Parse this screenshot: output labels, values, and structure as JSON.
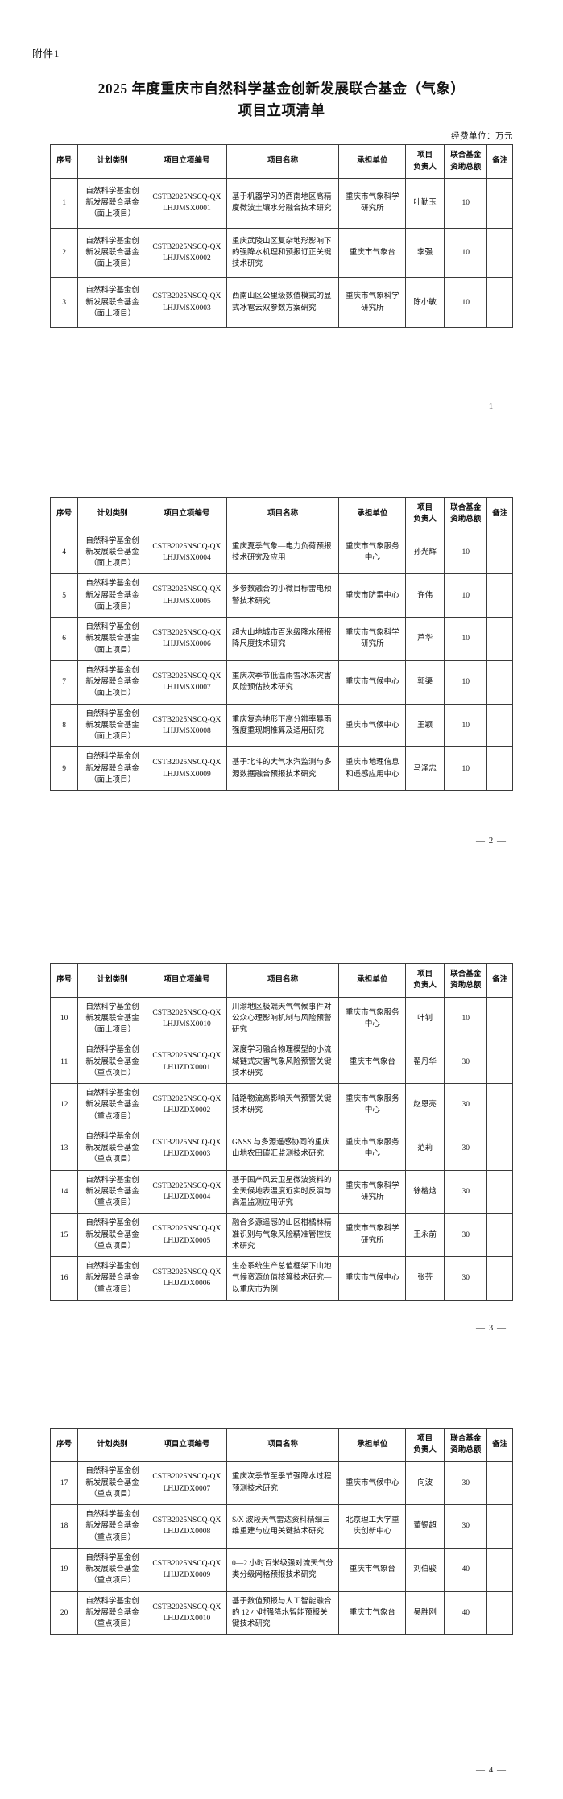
{
  "document": {
    "attachment_label": "附件1",
    "title_line1": "2025 年度重庆市自然科学基金创新发展联合基金（气象）",
    "title_line2": "项目立项清单",
    "unit_note": "经费单位：万元"
  },
  "table": {
    "headers": {
      "index": "序号",
      "category": "计划类别",
      "code": "项目立项编号",
      "name": "项目名称",
      "unit": "承担单位",
      "leader": "项目\n负责人",
      "amount": "联合基金\n资助总额",
      "remark": "备注"
    }
  },
  "pages": [
    {
      "page_label": "— 1 —",
      "rows": [
        {
          "index": "1",
          "category": "自然科学基金创\n新发展联合基金\n（面上项目）",
          "code": "CSTB2025NSCQ-QX\nLHJJMSX0001",
          "name": "基于机器学习的西南地区高精度微波土壤水分融合技术研究",
          "unit": "重庆市气象科学研究所",
          "leader": "叶勤玉",
          "amount": "10",
          "remark": ""
        },
        {
          "index": "2",
          "category": "自然科学基金创\n新发展联合基金\n（面上项目）",
          "code": "CSTB2025NSCQ-QX\nLHJJMSX0002",
          "name": "重庆武陵山区复杂地形影响下的强降水机理和预报订正关键技术研究",
          "unit": "重庆市气象台",
          "leader": "李强",
          "amount": "10",
          "remark": ""
        },
        {
          "index": "3",
          "category": "自然科学基金创\n新发展联合基金\n（面上项目）",
          "code": "CSTB2025NSCQ-QX\nLHJJMSX0003",
          "name": "西南山区公里级数值模式的显式冰雹云双参数方案研究",
          "unit": "重庆市气象科学研究所",
          "leader": "陈小敏",
          "amount": "10",
          "remark": ""
        }
      ]
    },
    {
      "page_label": "— 2 —",
      "rows": [
        {
          "index": "4",
          "category": "自然科学基金创\n新发展联合基金\n（面上项目）",
          "code": "CSTB2025NSCQ-QX\nLHJJMSX0004",
          "name": "重庆夏季气象—电力负荷预报技术研究及应用",
          "unit": "重庆市气象服务中心",
          "leader": "孙光辉",
          "amount": "10",
          "remark": ""
        },
        {
          "index": "5",
          "category": "自然科学基金创\n新发展联合基金\n（面上项目）",
          "code": "CSTB2025NSCQ-QX\nLHJJMSX0005",
          "name": "多参数融合的小微目标雷电预警技术研究",
          "unit": "重庆市防雷中心",
          "leader": "许伟",
          "amount": "10",
          "remark": ""
        },
        {
          "index": "6",
          "category": "自然科学基金创\n新发展联合基金\n（面上项目）",
          "code": "CSTB2025NSCQ-QX\nLHJJMSX0006",
          "name": "超大山地城市百米级降水预报降尺度技术研究",
          "unit": "重庆市气象科学研究所",
          "leader": "芦华",
          "amount": "10",
          "remark": ""
        },
        {
          "index": "7",
          "category": "自然科学基金创\n新发展联合基金\n（面上项目）",
          "code": "CSTB2025NSCQ-QX\nLHJJMSX0007",
          "name": "重庆次季节低温雨雪冰冻灾害风险预估技术研究",
          "unit": "重庆市气候中心",
          "leader": "郭渠",
          "amount": "10",
          "remark": ""
        },
        {
          "index": "8",
          "category": "自然科学基金创\n新发展联合基金\n（面上项目）",
          "code": "CSTB2025NSCQ-QX\nLHJJMSX0008",
          "name": "重庆复杂地形下高分辨率暴雨强度重现期推算及适用研究",
          "unit": "重庆市气候中心",
          "leader": "王颖",
          "amount": "10",
          "remark": ""
        },
        {
          "index": "9",
          "category": "自然科学基金创\n新发展联合基金\n（面上项目）",
          "code": "CSTB2025NSCQ-QX\nLHJJMSX0009",
          "name": "基于北斗的大气水汽监测与多源数据融合预报技术研究",
          "unit": "重庆市地理信息和遥感应用中心",
          "leader": "马泽忠",
          "amount": "10",
          "remark": ""
        }
      ]
    },
    {
      "page_label": "— 3 —",
      "rows": [
        {
          "index": "10",
          "category": "自然科学基金创\n新发展联合基金\n（面上项目）",
          "code": "CSTB2025NSCQ-QX\nLHJJMSX0010",
          "name": "川渝地区极端天气气候事件对公众心理影响机制与风险预警研究",
          "unit": "重庆市气象服务中心",
          "leader": "叶钊",
          "amount": "10",
          "remark": ""
        },
        {
          "index": "11",
          "category": "自然科学基金创\n新发展联合基金\n（重点项目）",
          "code": "CSTB2025NSCQ-QX\nLHJJZDX0001",
          "name": "深度学习融合物理模型的小流域链式灾害气象风险预警关键技术研究",
          "unit": "重庆市气象台",
          "leader": "翟丹华",
          "amount": "30",
          "remark": ""
        },
        {
          "index": "12",
          "category": "自然科学基金创\n新发展联合基金\n（重点项目）",
          "code": "CSTB2025NSCQ-QX\nLHJJZDX0002",
          "name": "陆路物流高影响天气预警关键技术研究",
          "unit": "重庆市气象服务中心",
          "leader": "赵恩亮",
          "amount": "30",
          "remark": ""
        },
        {
          "index": "13",
          "category": "自然科学基金创\n新发展联合基金\n（重点项目）",
          "code": "CSTB2025NSCQ-QX\nLHJJZDX0003",
          "name": "GNSS 与多源遥感协同的重庆山地农田碳汇监测技术研究",
          "unit": "重庆市气象服务中心",
          "leader": "范莉",
          "amount": "30",
          "remark": ""
        },
        {
          "index": "14",
          "category": "自然科学基金创\n新发展联合基金\n（重点项目）",
          "code": "CSTB2025NSCQ-QX\nLHJJZDX0004",
          "name": "基于国产风云卫星微波资料的全天候地表温度近实时反演与高温监测应用研究",
          "unit": "重庆市气象科学研究所",
          "leader": "徐榕焓",
          "amount": "30",
          "remark": ""
        },
        {
          "index": "15",
          "category": "自然科学基金创\n新发展联合基金\n（重点项目）",
          "code": "CSTB2025NSCQ-QX\nLHJJZDX0005",
          "name": "融合多源遥感的山区柑橘林精准识别与气象风险精准管控技术研究",
          "unit": "重庆市气象科学研究所",
          "leader": "王永前",
          "amount": "30",
          "remark": ""
        },
        {
          "index": "16",
          "category": "自然科学基金创\n新发展联合基金\n（重点项目）",
          "code": "CSTB2025NSCQ-QX\nLHJJZDX0006",
          "name": "生态系统生产总值框架下山地气候资源价值核算技术研究—以重庆市为例",
          "unit": "重庆市气候中心",
          "leader": "张芬",
          "amount": "30",
          "remark": ""
        }
      ]
    },
    {
      "page_label": "— 4 —",
      "rows": [
        {
          "index": "17",
          "category": "自然科学基金创\n新发展联合基金\n（重点项目）",
          "code": "CSTB2025NSCQ-QX\nLHJJZDX0007",
          "name": "重庆次季节至季节强降水过程预测技术研究",
          "unit": "重庆市气候中心",
          "leader": "向波",
          "amount": "30",
          "remark": ""
        },
        {
          "index": "18",
          "category": "自然科学基金创\n新发展联合基金\n（重点项目）",
          "code": "CSTB2025NSCQ-QX\nLHJJZDX0008",
          "name": "S/X 波段天气雷达资料精细三维重建与应用关键技术研究",
          "unit": "北京理工大学重庆创新中心",
          "leader": "董锡超",
          "amount": "30",
          "remark": ""
        },
        {
          "index": "19",
          "category": "自然科学基金创\n新发展联合基金\n（重点项目）",
          "code": "CSTB2025NSCQ-QX\nLHJJZDX0009",
          "name": "0—2 小时百米级强对流天气分类分级网格预报技术研究",
          "unit": "重庆市气象台",
          "leader": "刘伯骏",
          "amount": "40",
          "remark": ""
        },
        {
          "index": "20",
          "category": "自然科学基金创\n新发展联合基金\n（重点项目）",
          "code": "CSTB2025NSCQ-QX\nLHJJZDX0010",
          "name": "基于数值预报与人工智能融合的 12 小时强降水智能预报关键技术研究",
          "unit": "重庆市气象台",
          "leader": "吴胜刚",
          "amount": "40",
          "remark": ""
        }
      ]
    }
  ]
}
